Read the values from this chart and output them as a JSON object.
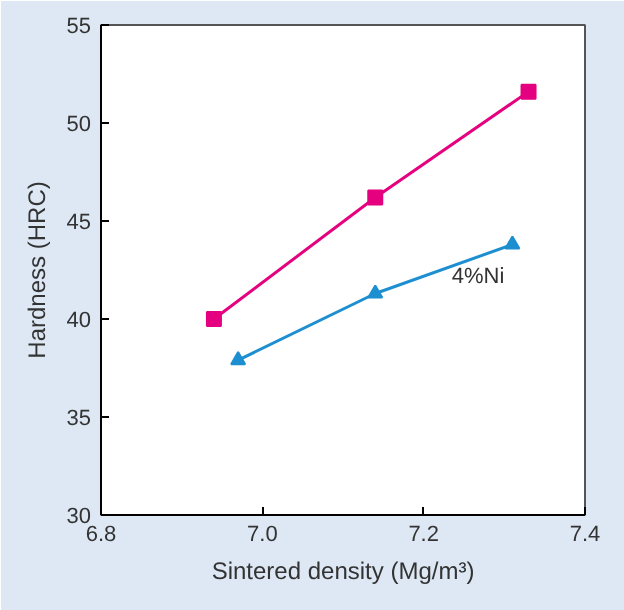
{
  "chart_data": {
    "type": "line",
    "xlabel": "Sintered density (Mg/m³)",
    "ylabel": "Hardness (HRC)",
    "xlim": [
      6.8,
      7.4
    ],
    "ylim": [
      30,
      55
    ],
    "xticks": [
      6.8,
      {
        "value": 7.0,
        "label": "7.0"
      },
      7.2,
      7.4
    ],
    "yticks": [
      30,
      35,
      40,
      45,
      50,
      55
    ],
    "grid": false,
    "line_style": "solid",
    "series": [
      {
        "color": "#e4007f",
        "marker": "square",
        "x": [
          6.94,
          7.14,
          7.33
        ],
        "values": [
          40.0,
          46.2,
          51.6
        ]
      },
      {
        "name": "4%Ni",
        "color": "#1d8fd1",
        "marker": "triangle",
        "x": [
          6.97,
          7.14,
          7.31
        ],
        "values": [
          37.9,
          41.3,
          43.8
        ]
      }
    ]
  }
}
